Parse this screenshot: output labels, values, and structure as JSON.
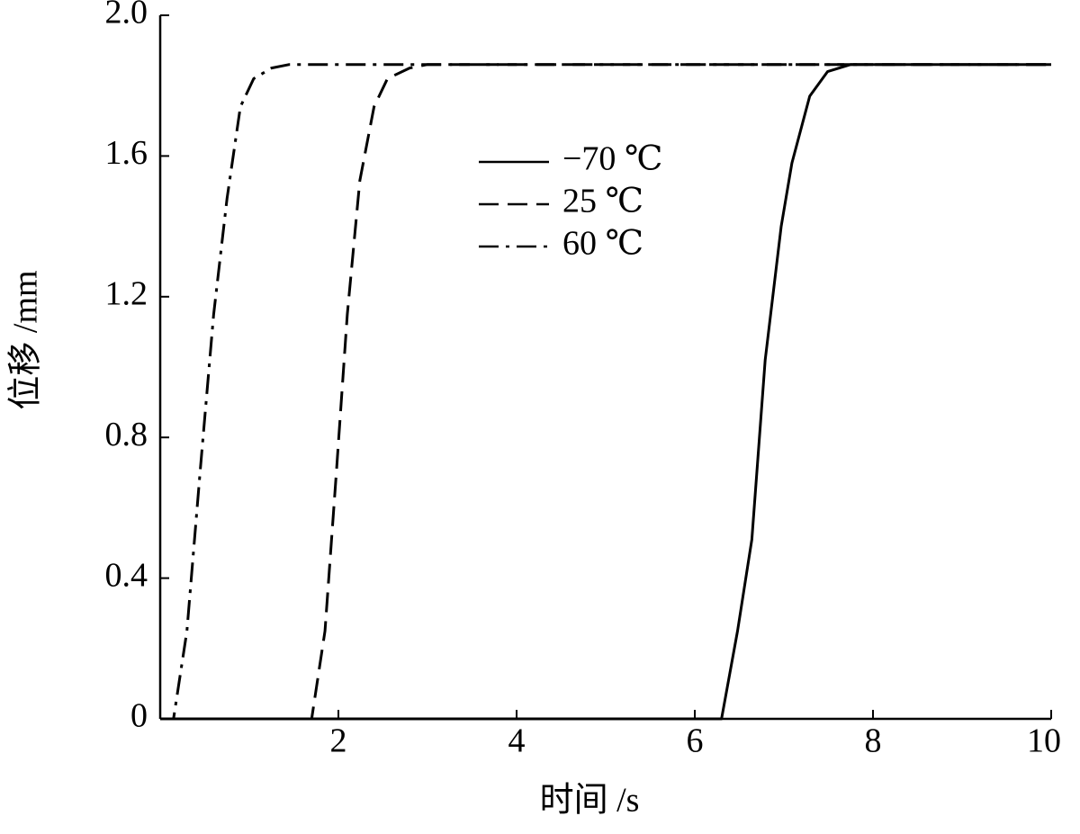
{
  "chart_data": {
    "type": "line",
    "xlabel": "时间 /s",
    "ylabel": "位移 /mm",
    "xlim": [
      0,
      10
    ],
    "xticks": [
      2,
      4,
      6,
      8,
      10
    ],
    "ylim": [
      0,
      2
    ],
    "yticks": [
      0,
      0.4,
      0.8,
      1.2,
      1.6,
      {
        "value": 2,
        "label": "2.0"
      }
    ],
    "legend": "top",
    "series": [
      {
        "name": "−70 ℃",
        "color": "#000000",
        "style": "solid",
        "x": [
          0,
          6.3,
          6.48,
          6.64,
          6.79,
          6.97,
          7.09,
          7.29,
          7.49,
          7.75,
          10
        ],
        "values": [
          0,
          0,
          0.25,
          0.51,
          1.02,
          1.4,
          1.58,
          1.77,
          1.84,
          1.86,
          1.86
        ]
      },
      {
        "name": "25 ℃",
        "color": "#000000",
        "style": "dashed",
        "x": [
          0,
          1.7,
          1.85,
          1.98,
          2.1,
          2.24,
          2.4,
          2.55,
          2.8,
          3.0,
          10
        ],
        "values": [
          0,
          0,
          0.25,
          0.71,
          1.15,
          1.53,
          1.74,
          1.82,
          1.85,
          1.86,
          1.86
        ]
      },
      {
        "name": "60 ℃",
        "color": "#000000",
        "style": "dashdot",
        "x": [
          0,
          0.15,
          0.3,
          0.45,
          0.6,
          0.75,
          0.9,
          1.05,
          1.25,
          1.45,
          10
        ],
        "values": [
          0,
          0,
          0.25,
          0.71,
          1.15,
          1.48,
          1.74,
          1.82,
          1.85,
          1.86,
          1.86
        ]
      }
    ]
  }
}
